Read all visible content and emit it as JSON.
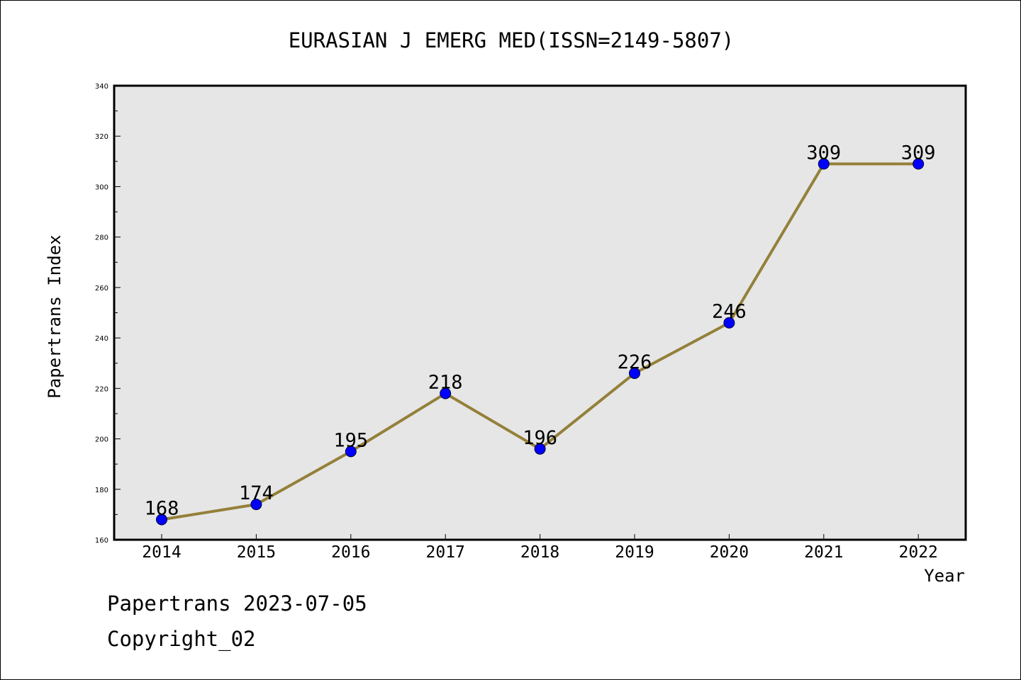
{
  "footer": {
    "line1": "Papertrans 2023-07-05",
    "line2": "Copyright_02"
  },
  "colors": {
    "plot_background": "#e6e6e6",
    "line": "#94803a",
    "marker": "#0000ff",
    "frame": "#000000"
  },
  "chart_data": {
    "type": "line",
    "title": "EURASIAN J EMERG MED(ISSN=2149-5807)",
    "xlabel": "Year",
    "ylabel": "Papertrans Index",
    "categories": [
      "2014",
      "2015",
      "2016",
      "2017",
      "2018",
      "2019",
      "2020",
      "2021",
      "2022"
    ],
    "series": [
      {
        "values": [
          168,
          174,
          195,
          218,
          196,
          226,
          246,
          309,
          309
        ]
      }
    ],
    "data_labels": [
      "168",
      "174",
      "195",
      "218",
      "196",
      "226",
      "246",
      "309",
      "309"
    ],
    "ylim": [
      160,
      340
    ],
    "yticks": [
      "160",
      "180",
      "200",
      "220",
      "240",
      "260",
      "280",
      "300",
      "320",
      "340"
    ],
    "grid": false,
    "legend": "none"
  }
}
